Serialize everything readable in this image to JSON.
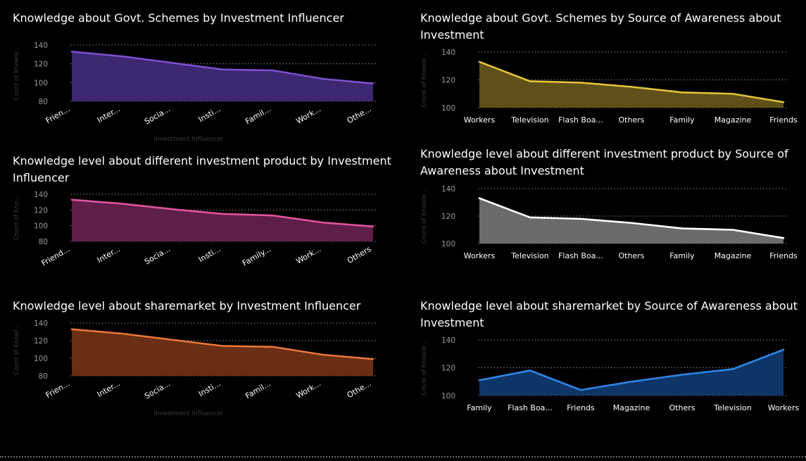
{
  "chart_data": [
    {
      "type": "area",
      "title": "Knowledge about Govt. Schemes by Investment Influencer",
      "xlabel": "Investment Influencer",
      "ylabel": "Count of Knowle...",
      "categories": [
        "Frien...",
        "Inter...",
        "Socia...",
        "Insti...",
        "Famil...",
        "Work...",
        "Othe..."
      ],
      "series": [
        {
          "values": [
            133,
            128,
            121,
            114,
            113,
            104,
            99
          ]
        }
      ],
      "ylim": [
        80,
        140
      ],
      "yticks": [
        80,
        100,
        120,
        140
      ],
      "grid": true,
      "color": "#7b4fcf",
      "fill": "#3c2770",
      "rotated_labels": true
    },
    {
      "type": "area",
      "title": "Knowledge about Govt. Schemes by Source of Awareness about Investment",
      "xlabel": "",
      "ylabel": "Count of Knowle...",
      "categories": [
        "Workers",
        "Television",
        "Flash Boa...",
        "Others",
        "Family",
        "Magazine",
        "Friends"
      ],
      "series": [
        {
          "values": [
            133,
            119,
            118,
            115,
            111,
            110,
            104
          ]
        }
      ],
      "ylim": [
        100,
        140
      ],
      "yticks": [
        100,
        120,
        140
      ],
      "grid": true,
      "color": "#e3c23a",
      "fill": "#5e5018",
      "rotated_labels": false
    },
    {
      "type": "area",
      "title": "Knowledge level about different investment product by Investment Influencer",
      "xlabel": "",
      "ylabel": "Count of Kno...",
      "categories": [
        "Friend...",
        "Inter...",
        "Socia...",
        "Insti...",
        "Family...",
        "Work...",
        "Others"
      ],
      "series": [
        {
          "values": [
            133,
            128,
            121,
            115,
            113,
            104,
            99
          ]
        }
      ],
      "ylim": [
        80,
        140
      ],
      "yticks": [
        80,
        100,
        120,
        140
      ],
      "grid": true,
      "color": "#e0529f",
      "fill": "#5e1e48",
      "rotated_labels": true
    },
    {
      "type": "area",
      "title": "Knowledge level about different investment product by Source of Awareness about Investment",
      "xlabel": "",
      "ylabel": "Count of Knowle...",
      "categories": [
        "Workers",
        "Television",
        "Flash Boa...",
        "Others",
        "Family",
        "Magazine",
        "Friends"
      ],
      "series": [
        {
          "values": [
            133,
            119,
            118,
            115,
            111,
            110,
            104
          ]
        }
      ],
      "ylim": [
        100,
        140
      ],
      "yticks": [
        100,
        120,
        140
      ],
      "grid": true,
      "color": "#ffffff",
      "fill": "#6b6b6b",
      "rotated_labels": false
    },
    {
      "type": "area",
      "title": "Knowledge level about sharemarket by Investment Influencer",
      "xlabel": "Investment Influencer",
      "ylabel": "Count of Knowl...",
      "categories": [
        "Frien...",
        "Inter...",
        "Socia...",
        "Insti...",
        "Famil...",
        "Work...",
        "Othe..."
      ],
      "series": [
        {
          "values": [
            133,
            128,
            121,
            114,
            113,
            104,
            99
          ]
        }
      ],
      "ylim": [
        80,
        140
      ],
      "yticks": [
        80,
        100,
        120,
        140
      ],
      "grid": true,
      "color": "#e8773a",
      "fill": "#6a2e15",
      "rotated_labels": true
    },
    {
      "type": "area",
      "title": "Knowledge level about sharemarket by Source of Awareness about Investment",
      "xlabel": "",
      "ylabel": "Count of Knowle...",
      "categories": [
        "Family",
        "Flash Boa...",
        "Friends",
        "Magazine",
        "Others",
        "Television",
        "Workers"
      ],
      "series": [
        {
          "values": [
            111,
            118,
            104,
            110,
            115,
            119,
            133
          ]
        }
      ],
      "ylim": [
        100,
        140
      ],
      "yticks": [
        100,
        120,
        140
      ],
      "grid": true,
      "color": "#2f86e6",
      "fill": "#0e3568",
      "rotated_labels": false
    }
  ]
}
